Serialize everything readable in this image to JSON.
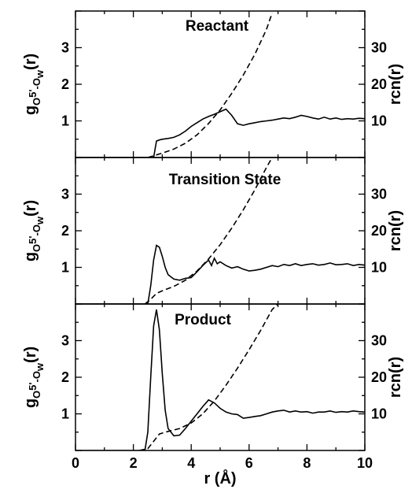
{
  "chart_data": [
    {
      "type": "line",
      "title": "Reactant",
      "xlabel": "",
      "ylabel": "(r)",
      "ylabel_main": "g",
      "ylabel_sub1": "O",
      "ylabel_sub2": "5'",
      "ylabel_sep": "-O",
      "ylabel_sub3": "w",
      "y2label": "rcn(r)",
      "xlim": [
        0,
        10
      ],
      "ylim": [
        0,
        4
      ],
      "y2lim": [
        0,
        40
      ],
      "xticks": [
        "0",
        "2",
        "4",
        "6",
        "8",
        "10"
      ],
      "yticks": [
        "1",
        "2",
        "3"
      ],
      "y2ticks": [
        "10",
        "20",
        "30"
      ],
      "series": [
        {
          "style": "solid",
          "axis": "left",
          "x": [
            0,
            2.7,
            2.8,
            2.9,
            3.0,
            3.2,
            3.4,
            3.6,
            3.8,
            4.0,
            4.2,
            4.4,
            4.6,
            4.8,
            5.0,
            5.2,
            5.4,
            5.6,
            5.8,
            6.0,
            6.2,
            6.4,
            6.6,
            6.8,
            7.0,
            7.2,
            7.4,
            7.6,
            7.8,
            8.0,
            8.2,
            8.4,
            8.6,
            8.8,
            9.0,
            9.2,
            9.4,
            9.6,
            9.8,
            10.0
          ],
          "y": [
            0,
            0,
            0.45,
            0.48,
            0.5,
            0.52,
            0.55,
            0.62,
            0.72,
            0.85,
            0.95,
            1.05,
            1.12,
            1.18,
            1.25,
            1.32,
            1.15,
            0.92,
            0.88,
            0.92,
            0.95,
            0.98,
            1.0,
            1.02,
            1.05,
            1.08,
            1.06,
            1.1,
            1.15,
            1.12,
            1.08,
            1.05,
            1.1,
            1.05,
            1.08,
            1.04,
            1.06,
            1.05,
            1.07,
            1.06
          ]
        },
        {
          "style": "dashed",
          "axis": "right",
          "x": [
            2.5,
            2.8,
            3.0,
            3.4,
            3.8,
            4.2,
            4.6,
            5.0,
            5.4,
            5.8,
            6.2,
            6.6,
            6.8
          ],
          "y": [
            0,
            0.7,
            1.2,
            2.3,
            3.9,
            6.2,
            9.3,
            13.0,
            17.5,
            22.5,
            28.2,
            35.0,
            39.5
          ]
        }
      ]
    },
    {
      "type": "line",
      "title": "Transition State",
      "xlabel": "",
      "ylabel": "(r)",
      "ylabel_main": "g",
      "ylabel_sub1": "O",
      "ylabel_sub2": "5'",
      "ylabel_sep": "-O",
      "ylabel_sub3": "w",
      "y2label": "rcn(r)",
      "xlim": [
        0,
        10
      ],
      "ylim": [
        0,
        4
      ],
      "y2lim": [
        0,
        40
      ],
      "xticks": [
        "0",
        "2",
        "4",
        "6",
        "8",
        "10"
      ],
      "yticks": [
        "1",
        "2",
        "3"
      ],
      "y2ticks": [
        "10",
        "20",
        "30"
      ],
      "series": [
        {
          "style": "solid",
          "axis": "left",
          "x": [
            0,
            2.5,
            2.6,
            2.7,
            2.8,
            2.9,
            3.0,
            3.1,
            3.2,
            3.4,
            3.6,
            3.8,
            4.0,
            4.2,
            4.4,
            4.6,
            4.7,
            4.8,
            4.9,
            5.0,
            5.2,
            5.4,
            5.6,
            5.8,
            6.0,
            6.2,
            6.4,
            6.6,
            6.8,
            7.0,
            7.2,
            7.4,
            7.6,
            7.8,
            8.0,
            8.2,
            8.4,
            8.6,
            8.8,
            9.0,
            9.2,
            9.4,
            9.6,
            9.8,
            10.0
          ],
          "y": [
            0,
            0,
            0.5,
            1.2,
            1.6,
            1.55,
            1.3,
            1.0,
            0.8,
            0.68,
            0.65,
            0.7,
            0.72,
            0.88,
            1.05,
            1.2,
            1.05,
            1.25,
            1.1,
            1.15,
            1.05,
            0.98,
            1.02,
            0.95,
            0.9,
            0.92,
            0.95,
            1.0,
            1.05,
            1.02,
            1.08,
            1.05,
            1.1,
            1.05,
            1.08,
            1.1,
            1.06,
            1.08,
            1.12,
            1.07,
            1.08,
            1.1,
            1.05,
            1.08,
            1.06
          ]
        },
        {
          "style": "dashed",
          "axis": "right",
          "x": [
            2.4,
            2.6,
            2.8,
            3.0,
            3.4,
            3.8,
            4.2,
            4.6,
            5.0,
            5.4,
            5.8,
            6.2,
            6.6,
            6.8
          ],
          "y": [
            0,
            1.3,
            2.9,
            3.6,
            4.8,
            6.5,
            9.0,
            12.3,
            16.2,
            20.7,
            25.7,
            31.2,
            37.3,
            40.0
          ]
        }
      ]
    },
    {
      "type": "line",
      "title": "Product",
      "xlabel": "r (Å)",
      "ylabel": "(r)",
      "ylabel_main": "g",
      "ylabel_sub1": "O",
      "ylabel_sub2": "5'",
      "ylabel_sep": "-O",
      "ylabel_sub3": "w",
      "y2label": "rcn(r)",
      "xlim": [
        0,
        10
      ],
      "ylim": [
        0,
        4
      ],
      "y2lim": [
        0,
        40
      ],
      "xticks": [
        "0",
        "2",
        "4",
        "6",
        "8",
        "10"
      ],
      "yticks": [
        "1",
        "2",
        "3"
      ],
      "y2ticks": [
        "10",
        "20",
        "30"
      ],
      "series": [
        {
          "style": "solid",
          "axis": "left",
          "x": [
            0,
            2.4,
            2.5,
            2.6,
            2.7,
            2.8,
            2.9,
            3.0,
            3.1,
            3.2,
            3.4,
            3.6,
            3.8,
            4.0,
            4.2,
            4.4,
            4.6,
            4.8,
            5.0,
            5.2,
            5.4,
            5.6,
            5.8,
            6.0,
            6.2,
            6.4,
            6.6,
            6.8,
            7.0,
            7.2,
            7.4,
            7.6,
            7.8,
            8.0,
            8.2,
            8.4,
            8.6,
            8.8,
            9.0,
            9.2,
            9.4,
            9.6,
            9.8,
            10.0
          ],
          "y": [
            0,
            0,
            0.5,
            2.0,
            3.4,
            3.85,
            3.3,
            2.1,
            1.1,
            0.6,
            0.4,
            0.42,
            0.6,
            0.8,
            1.0,
            1.2,
            1.38,
            1.3,
            1.15,
            1.05,
            1.0,
            0.98,
            0.88,
            0.9,
            0.93,
            0.95,
            1.0,
            1.05,
            1.08,
            1.1,
            1.05,
            1.08,
            1.05,
            1.06,
            1.02,
            1.05,
            1.05,
            1.08,
            1.04,
            1.06,
            1.05,
            1.08,
            1.06,
            1.05
          ]
        },
        {
          "style": "dashed",
          "axis": "right",
          "x": [
            2.2,
            2.5,
            2.7,
            2.9,
            3.2,
            3.6,
            4.0,
            4.4,
            4.8,
            5.2,
            5.6,
            6.0,
            6.4,
            6.8,
            7.0
          ],
          "y": [
            0,
            0.5,
            2.5,
            4.5,
            5.2,
            6.0,
            7.5,
            10.0,
            13.5,
            17.8,
            22.5,
            27.5,
            32.8,
            38.5,
            40.0
          ]
        }
      ]
    }
  ]
}
